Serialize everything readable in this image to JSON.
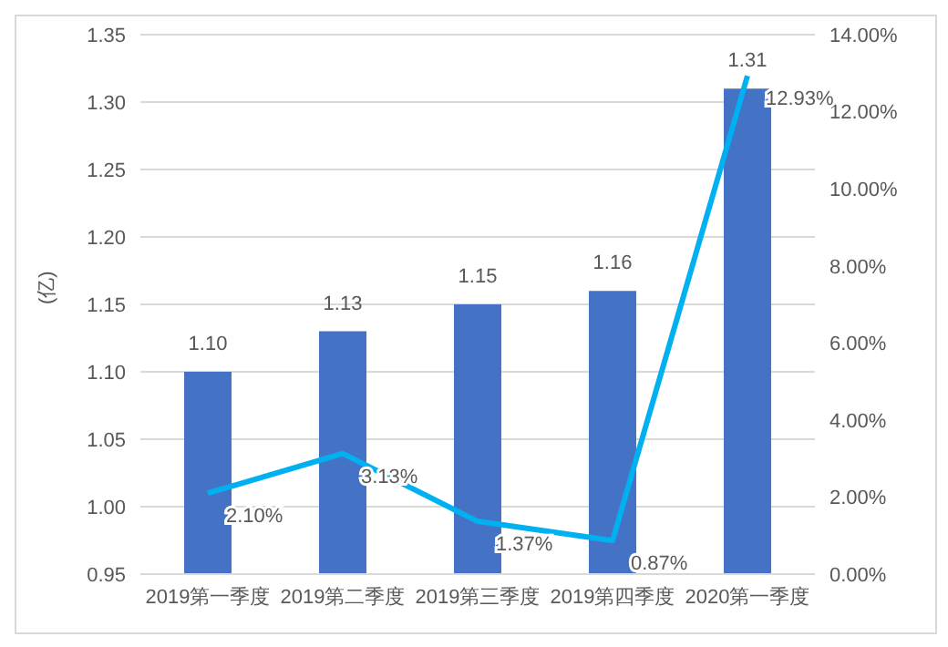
{
  "chart_data": {
    "type": "bar",
    "ylabel": "(亿)",
    "categories": [
      "2019第一季度",
      "2019第二季度",
      "2019第三季度",
      "2019第四季度",
      "2020第一季度"
    ],
    "series": [
      {
        "color": "#4472c4",
        "values": [
          1.1,
          1.13,
          1.15,
          1.16,
          1.31
        ],
        "value_labels": [
          "1.10",
          "1.13",
          "1.15",
          "1.16",
          "1.31"
        ]
      },
      {
        "type": "line",
        "axis": "y2",
        "color": "#00b0f0",
        "values": [
          2.1,
          3.13,
          1.37,
          0.87,
          12.93
        ],
        "value_labels": [
          "2.10%",
          "3.13%",
          "1.37%",
          "0.87%",
          "12.93%"
        ]
      }
    ],
    "ylim": [
      0.95,
      1.35
    ],
    "yticks": [
      {
        "value": 0.95,
        "label": "0.95"
      },
      {
        "value": 1.0,
        "label": "1.00"
      },
      {
        "value": 1.05,
        "label": "1.05"
      },
      {
        "value": 1.1,
        "label": "1.10"
      },
      {
        "value": 1.15,
        "label": "1.15"
      },
      {
        "value": 1.2,
        "label": "1.20"
      },
      {
        "value": 1.25,
        "label": "1.25"
      },
      {
        "value": 1.3,
        "label": "1.30"
      },
      {
        "value": 1.35,
        "label": "1.35"
      }
    ],
    "y2lim": [
      0,
      14
    ],
    "y2ticks": [
      {
        "value": 0,
        "label": "0.00%"
      },
      {
        "value": 2,
        "label": "2.00%"
      },
      {
        "value": 4,
        "label": "4.00%"
      },
      {
        "value": 6,
        "label": "6.00%"
      },
      {
        "value": 8,
        "label": "8.00%"
      },
      {
        "value": 10,
        "label": "10.00%"
      },
      {
        "value": 12,
        "label": "12.00%"
      },
      {
        "value": 14,
        "label": "14.00%"
      }
    ],
    "grid": "y",
    "legend": false,
    "marker": "none",
    "line_style": "solid"
  }
}
